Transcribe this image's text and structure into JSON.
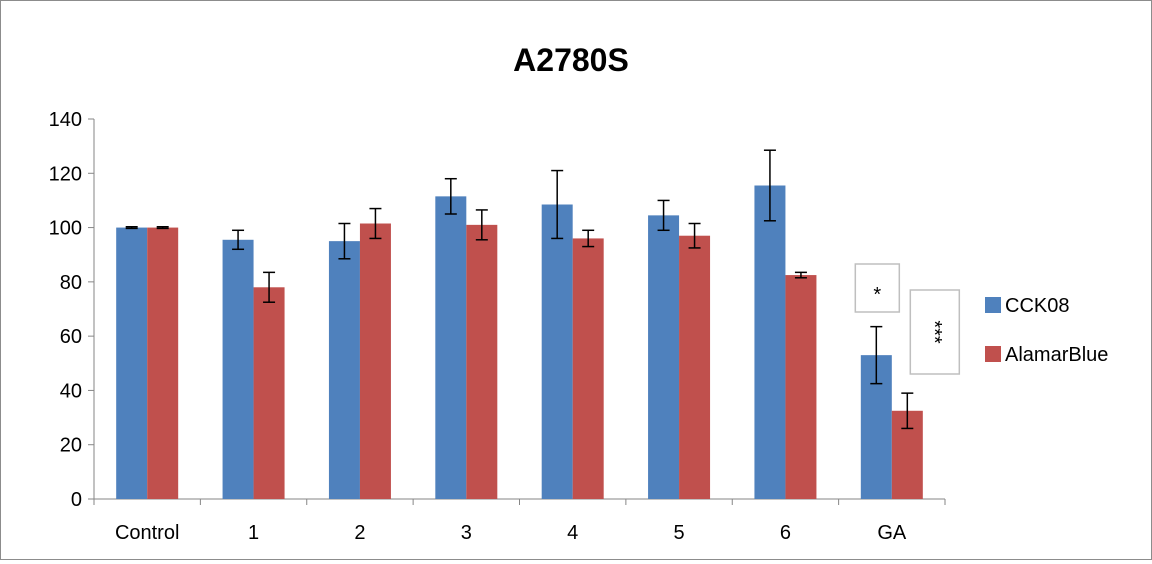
{
  "chart_data": {
    "type": "bar",
    "title": "A2780S",
    "xlabel": "",
    "ylabel": "",
    "ylim": [
      0,
      140
    ],
    "yticks": [
      0,
      20,
      40,
      60,
      80,
      100,
      120,
      140
    ],
    "categories": [
      "Control",
      "1",
      "2",
      "3",
      "4",
      "5",
      "6",
      "GA"
    ],
    "series": [
      {
        "name": "CCK08",
        "color": "#4f81bd",
        "values": [
          100,
          95.5,
          95,
          111.5,
          108.5,
          104.5,
          115.5,
          53
        ],
        "errors": [
          0.3,
          3.5,
          6.5,
          6.5,
          12.5,
          5.5,
          13,
          10.5
        ]
      },
      {
        "name": "AlamarBlue",
        "color": "#c0504d",
        "values": [
          100,
          78,
          101.5,
          101,
          96,
          97,
          82.5,
          32.5
        ],
        "errors": [
          0.3,
          5.5,
          5.5,
          5.5,
          3,
          4.5,
          1,
          6.5
        ]
      }
    ],
    "grid": false,
    "legend_position": "right",
    "annotations": [
      {
        "category": "GA",
        "series": "CCK08",
        "text": "*"
      },
      {
        "category": "GA",
        "series": "AlamarBlue",
        "text": "***"
      }
    ]
  }
}
